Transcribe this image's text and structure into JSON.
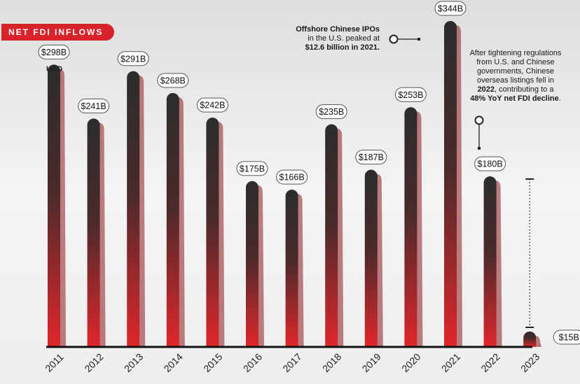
{
  "tag": "NET FDI INFLOWS",
  "unit_label": "USD",
  "annotations": {
    "ipo_line1": "Offshore Chinese IPOs",
    "ipo_line2": "in the U.S. peaked at",
    "ipo_line3": "$12.6 billion in 2021.",
    "reg_line1": "After tightening regulations",
    "reg_line2": "from U.S. and Chinese",
    "reg_line3": "governments, Chinese",
    "reg_line4": "overseas listings fell in",
    "reg_line5_bold": "2022",
    "reg_line5_rest": ", contributing to a",
    "reg_line6_bold": "48% YoY net FDI decline",
    "reg_line6_end": "."
  },
  "colors": {
    "bar_top": "#2c2c2c",
    "bar_bottom": "#e0262b",
    "tag_bg": "#d9232a"
  },
  "chart_data": {
    "type": "bar",
    "categories": [
      "2011",
      "2012",
      "2013",
      "2014",
      "2015",
      "2016",
      "2017",
      "2018",
      "2019",
      "2020",
      "2021",
      "2022",
      "2023"
    ],
    "values": [
      298,
      241,
      291,
      268,
      242,
      175,
      166,
      235,
      187,
      253,
      344,
      180,
      15
    ],
    "value_labels": [
      "$298B",
      "$241B",
      "$291B",
      "$268B",
      "$242B",
      "$175B",
      "$166B",
      "$235B",
      "$187B",
      "$253B",
      "$344B",
      "$180B",
      "$15B"
    ],
    "ylabel": "USD",
    "ylim": [
      0,
      350
    ]
  }
}
